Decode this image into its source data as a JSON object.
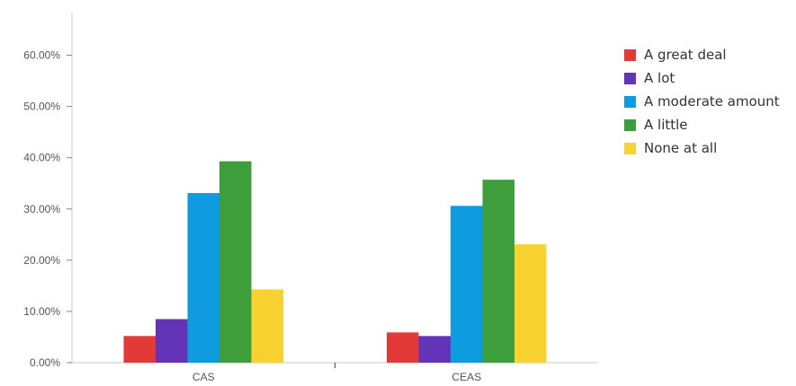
{
  "chart_data": {
    "type": "bar",
    "categories": [
      "CAS",
      "CEAS"
    ],
    "series": [
      {
        "name": "A great deal",
        "color": "#e23a36",
        "values": [
          5.2,
          5.9
        ]
      },
      {
        "name": "A lot",
        "color": "#6434b8",
        "values": [
          8.5,
          5.2
        ]
      },
      {
        "name": "A moderate amount",
        "color": "#0f9be0",
        "values": [
          33.1,
          30.6
        ]
      },
      {
        "name": "A little",
        "color": "#3f9e3c",
        "values": [
          39.3,
          35.7
        ]
      },
      {
        "name": "None at all",
        "color": "#f8d230",
        "values": [
          14.3,
          23.1
        ]
      }
    ],
    "yticks": [
      "0.00%",
      "10.00%",
      "20.00%",
      "30.00%",
      "40.00%",
      "50.00%",
      "60.00%"
    ],
    "ylim": [
      0,
      60
    ],
    "xlabel": "",
    "ylabel": "",
    "title": "",
    "legend_position": "right",
    "grid": false
  }
}
